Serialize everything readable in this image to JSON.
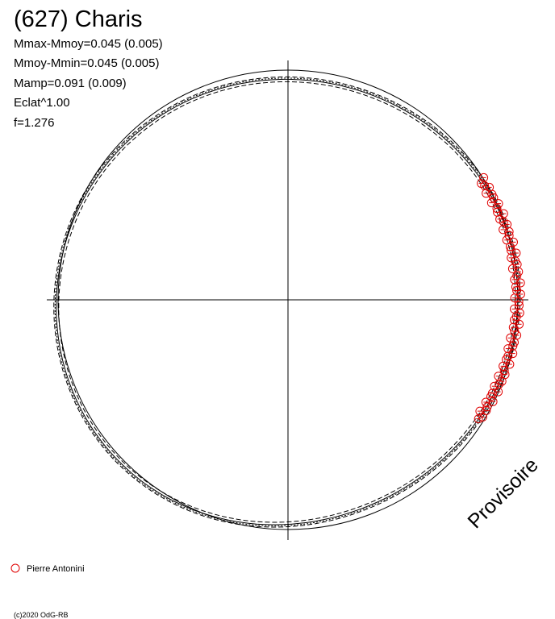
{
  "header": {
    "title": "(627) Charis",
    "stats": [
      "Mmax-Mmoy=0.045 (0.005)",
      "Mmoy-Mmin=0.045 (0.005)",
      "Mamp=0.091 (0.009)",
      "Eclat^1.00",
      "f=1.276"
    ]
  },
  "watermark": "Provisoire",
  "legend": {
    "observer": "Pierre Antonini"
  },
  "footer": {
    "copyright": "(c)2020 OdG-RB"
  }
}
